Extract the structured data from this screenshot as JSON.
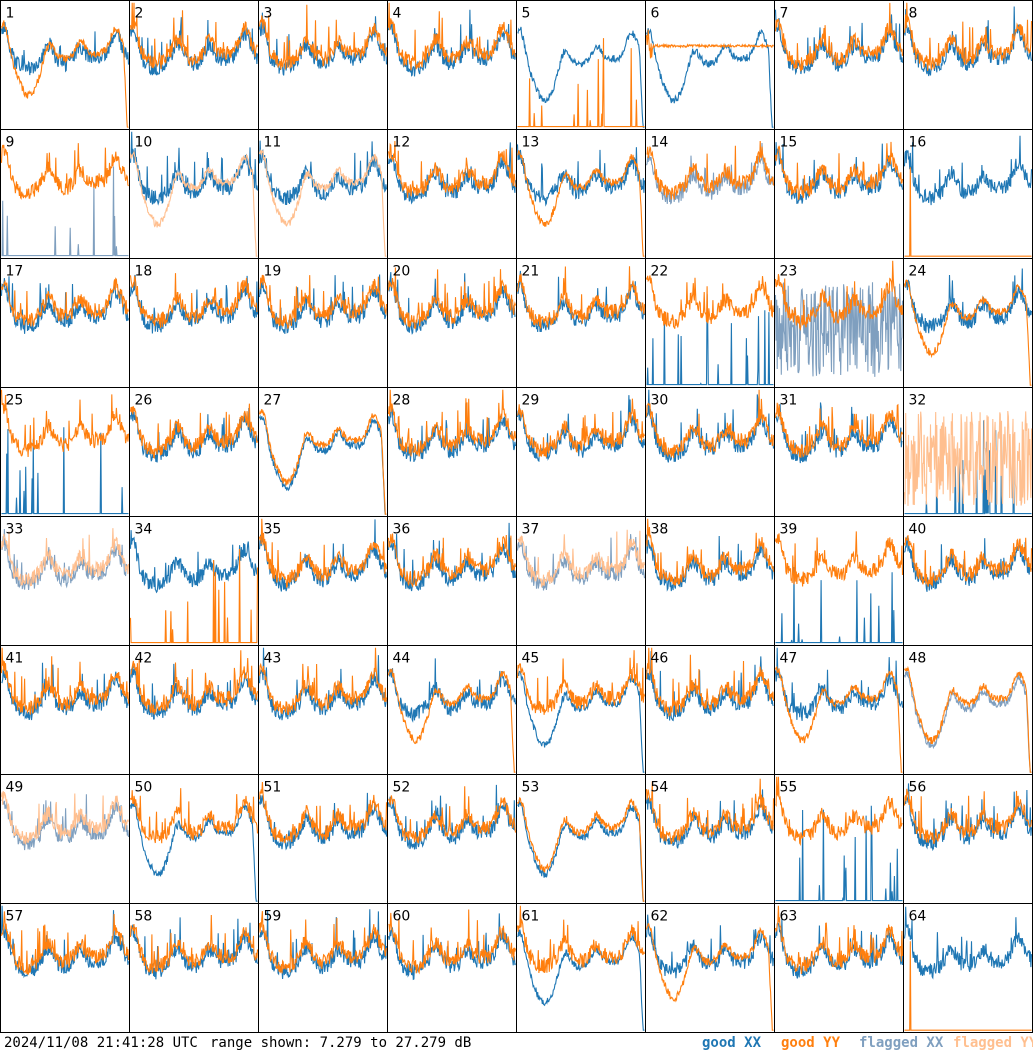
{
  "footer": {
    "timestamp": "2024/11/08 21:41:28 UTC",
    "range_text": "range shown: 7.279 to 27.279 dB"
  },
  "legend": {
    "good_xx": "good XX",
    "good_yy": "good YY",
    "flagged_xx": "flagged XX",
    "flagged_yy": "flagged YY"
  },
  "colors": {
    "good_xx": "#1f77b4",
    "good_yy": "#ff7f0e",
    "flagged_xx": "#7f9fbf",
    "flagged_yy": "#ffbf8f"
  },
  "chart_data": {
    "type": "line",
    "title": "",
    "ylim": [
      7.279,
      27.279
    ],
    "ylabel_units": "dB",
    "grid_layout": "8x8",
    "panels": [
      {
        "id": 1,
        "xx": "good",
        "yy": "good",
        "xx_pattern": "normal",
        "yy_pattern": "dip"
      },
      {
        "id": 2,
        "xx": "good",
        "yy": "good",
        "xx_pattern": "normal",
        "yy_pattern": "normal"
      },
      {
        "id": 3,
        "xx": "good",
        "yy": "good",
        "xx_pattern": "normal",
        "yy_pattern": "normal"
      },
      {
        "id": 4,
        "xx": "good",
        "yy": "good",
        "xx_pattern": "normal",
        "yy_pattern": "normal"
      },
      {
        "id": 5,
        "xx": "good",
        "yy": "good",
        "xx_pattern": "dip",
        "yy_pattern": "spikes"
      },
      {
        "id": 6,
        "xx": "good",
        "yy": "good",
        "xx_pattern": "dip",
        "yy_pattern": "flat"
      },
      {
        "id": 7,
        "xx": "good",
        "yy": "good",
        "xx_pattern": "normal",
        "yy_pattern": "normal"
      },
      {
        "id": 8,
        "xx": "good",
        "yy": "good",
        "xx_pattern": "normal",
        "yy_pattern": "normal"
      },
      {
        "id": 9,
        "xx": "flagged",
        "yy": "good",
        "xx_pattern": "spikes",
        "yy_pattern": "normal"
      },
      {
        "id": 10,
        "xx": "good",
        "yy": "flagged",
        "xx_pattern": "normal",
        "yy_pattern": "dip"
      },
      {
        "id": 11,
        "xx": "good",
        "yy": "flagged",
        "xx_pattern": "normal",
        "yy_pattern": "dip"
      },
      {
        "id": 12,
        "xx": "good",
        "yy": "good",
        "xx_pattern": "normal",
        "yy_pattern": "normal"
      },
      {
        "id": 13,
        "xx": "good",
        "yy": "good",
        "xx_pattern": "normal",
        "yy_pattern": "dip"
      },
      {
        "id": 14,
        "xx": "flagged",
        "yy": "good",
        "xx_pattern": "normal",
        "yy_pattern": "normal"
      },
      {
        "id": 15,
        "xx": "good",
        "yy": "good",
        "xx_pattern": "normal",
        "yy_pattern": "normal"
      },
      {
        "id": 16,
        "xx": "good",
        "yy": "good",
        "xx_pattern": "normal",
        "yy_pattern": "dead"
      },
      {
        "id": 17,
        "xx": "good",
        "yy": "good",
        "xx_pattern": "normal",
        "yy_pattern": "normal"
      },
      {
        "id": 18,
        "xx": "good",
        "yy": "good",
        "xx_pattern": "normal",
        "yy_pattern": "normal"
      },
      {
        "id": 19,
        "xx": "good",
        "yy": "good",
        "xx_pattern": "normal",
        "yy_pattern": "normal"
      },
      {
        "id": 20,
        "xx": "good",
        "yy": "good",
        "xx_pattern": "normal",
        "yy_pattern": "normal"
      },
      {
        "id": 21,
        "xx": "good",
        "yy": "good",
        "xx_pattern": "normal",
        "yy_pattern": "normal"
      },
      {
        "id": 22,
        "xx": "good",
        "yy": "good",
        "xx_pattern": "spikes",
        "yy_pattern": "normal"
      },
      {
        "id": 23,
        "xx": "flagged",
        "yy": "good",
        "xx_pattern": "noisy",
        "yy_pattern": "normal"
      },
      {
        "id": 24,
        "xx": "good",
        "yy": "good",
        "xx_pattern": "normal",
        "yy_pattern": "dip"
      },
      {
        "id": 25,
        "xx": "good",
        "yy": "good",
        "xx_pattern": "spikes",
        "yy_pattern": "normal"
      },
      {
        "id": 26,
        "xx": "good",
        "yy": "good",
        "xx_pattern": "normal",
        "yy_pattern": "normal"
      },
      {
        "id": 27,
        "xx": "good",
        "yy": "good",
        "xx_pattern": "dip",
        "yy_pattern": "dip"
      },
      {
        "id": 28,
        "xx": "good",
        "yy": "good",
        "xx_pattern": "normal",
        "yy_pattern": "normal"
      },
      {
        "id": 29,
        "xx": "good",
        "yy": "good",
        "xx_pattern": "normal",
        "yy_pattern": "normal"
      },
      {
        "id": 30,
        "xx": "good",
        "yy": "good",
        "xx_pattern": "normal",
        "yy_pattern": "normal"
      },
      {
        "id": 31,
        "xx": "good",
        "yy": "good",
        "xx_pattern": "normal",
        "yy_pattern": "normal"
      },
      {
        "id": 32,
        "xx": "good",
        "yy": "flagged",
        "xx_pattern": "spikes",
        "yy_pattern": "noisy"
      },
      {
        "id": 33,
        "xx": "flagged",
        "yy": "flagged",
        "xx_pattern": "normal",
        "yy_pattern": "normal"
      },
      {
        "id": 34,
        "xx": "good",
        "yy": "good",
        "xx_pattern": "normal",
        "yy_pattern": "spikes"
      },
      {
        "id": 35,
        "xx": "good",
        "yy": "good",
        "xx_pattern": "normal",
        "yy_pattern": "normal"
      },
      {
        "id": 36,
        "xx": "good",
        "yy": "good",
        "xx_pattern": "normal",
        "yy_pattern": "normal"
      },
      {
        "id": 37,
        "xx": "flagged",
        "yy": "flagged",
        "xx_pattern": "normal",
        "yy_pattern": "normal"
      },
      {
        "id": 38,
        "xx": "good",
        "yy": "good",
        "xx_pattern": "normal",
        "yy_pattern": "normal"
      },
      {
        "id": 39,
        "xx": "good",
        "yy": "good",
        "xx_pattern": "spikes",
        "yy_pattern": "normal"
      },
      {
        "id": 40,
        "xx": "good",
        "yy": "good",
        "xx_pattern": "normal",
        "yy_pattern": "normal"
      },
      {
        "id": 41,
        "xx": "good",
        "yy": "good",
        "xx_pattern": "normal",
        "yy_pattern": "normal"
      },
      {
        "id": 42,
        "xx": "good",
        "yy": "good",
        "xx_pattern": "normal",
        "yy_pattern": "normal"
      },
      {
        "id": 43,
        "xx": "good",
        "yy": "good",
        "xx_pattern": "normal",
        "yy_pattern": "normal"
      },
      {
        "id": 44,
        "xx": "good",
        "yy": "good",
        "xx_pattern": "normal",
        "yy_pattern": "dip"
      },
      {
        "id": 45,
        "xx": "good",
        "yy": "good",
        "xx_pattern": "dip",
        "yy_pattern": "normal"
      },
      {
        "id": 46,
        "xx": "good",
        "yy": "good",
        "xx_pattern": "normal",
        "yy_pattern": "normal"
      },
      {
        "id": 47,
        "xx": "good",
        "yy": "good",
        "xx_pattern": "normal",
        "yy_pattern": "dip"
      },
      {
        "id": 48,
        "xx": "flagged",
        "yy": "good",
        "xx_pattern": "dip",
        "yy_pattern": "dip"
      },
      {
        "id": 49,
        "xx": "flagged",
        "yy": "flagged",
        "xx_pattern": "normal",
        "yy_pattern": "normal"
      },
      {
        "id": 50,
        "xx": "good",
        "yy": "good",
        "xx_pattern": "dip",
        "yy_pattern": "normal"
      },
      {
        "id": 51,
        "xx": "good",
        "yy": "good",
        "xx_pattern": "normal",
        "yy_pattern": "normal"
      },
      {
        "id": 52,
        "xx": "good",
        "yy": "good",
        "xx_pattern": "normal",
        "yy_pattern": "normal"
      },
      {
        "id": 53,
        "xx": "good",
        "yy": "good",
        "xx_pattern": "dip",
        "yy_pattern": "dip"
      },
      {
        "id": 54,
        "xx": "good",
        "yy": "good",
        "xx_pattern": "normal",
        "yy_pattern": "normal"
      },
      {
        "id": 55,
        "xx": "good",
        "yy": "good",
        "xx_pattern": "spikes",
        "yy_pattern": "normal"
      },
      {
        "id": 56,
        "xx": "good",
        "yy": "good",
        "xx_pattern": "normal",
        "yy_pattern": "normal"
      },
      {
        "id": 57,
        "xx": "good",
        "yy": "good",
        "xx_pattern": "normal",
        "yy_pattern": "normal"
      },
      {
        "id": 58,
        "xx": "good",
        "yy": "good",
        "xx_pattern": "normal",
        "yy_pattern": "normal"
      },
      {
        "id": 59,
        "xx": "good",
        "yy": "good",
        "xx_pattern": "normal",
        "yy_pattern": "normal"
      },
      {
        "id": 60,
        "xx": "good",
        "yy": "good",
        "xx_pattern": "normal",
        "yy_pattern": "normal"
      },
      {
        "id": 61,
        "xx": "good",
        "yy": "good",
        "xx_pattern": "dip",
        "yy_pattern": "normal"
      },
      {
        "id": 62,
        "xx": "good",
        "yy": "good",
        "xx_pattern": "normal",
        "yy_pattern": "dip"
      },
      {
        "id": 63,
        "xx": "good",
        "yy": "good",
        "xx_pattern": "normal",
        "yy_pattern": "normal"
      },
      {
        "id": 64,
        "xx": "good",
        "yy": "good",
        "xx_pattern": "normal",
        "yy_pattern": "dead"
      }
    ]
  }
}
